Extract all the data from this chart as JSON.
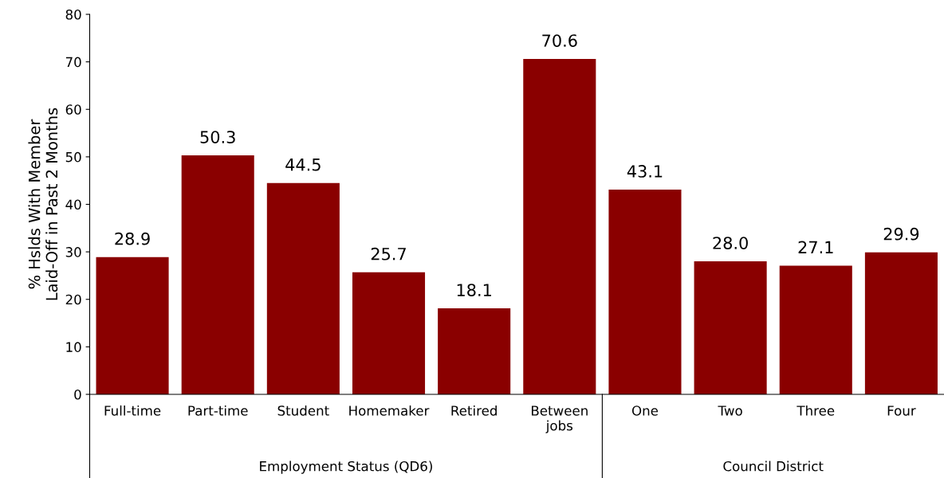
{
  "chart_data": {
    "type": "bar",
    "categories": [
      "Full-time",
      "Part-time",
      "Student",
      "Homemaker",
      "Retired",
      "Between\njobs",
      "One",
      "Two",
      "Three",
      "Four"
    ],
    "values": [
      28.9,
      50.3,
      44.5,
      25.7,
      18.1,
      70.6,
      43.1,
      28.0,
      27.1,
      29.9
    ],
    "value_labels": [
      "28.9",
      "50.3",
      "44.5",
      "25.7",
      "18.1",
      "70.6",
      "43.1",
      "28.0",
      "27.1",
      "29.9"
    ],
    "color": "#8a0000",
    "ylabel": "% Hslds With Member\nLaid-Off in Past 2 Months",
    "ylim": [
      0,
      80
    ],
    "yticks": [
      0,
      10,
      20,
      30,
      40,
      50,
      60,
      70,
      80
    ],
    "annotations": [
      "Employment Status (QD6)",
      "Council District"
    ],
    "grid": false
  }
}
